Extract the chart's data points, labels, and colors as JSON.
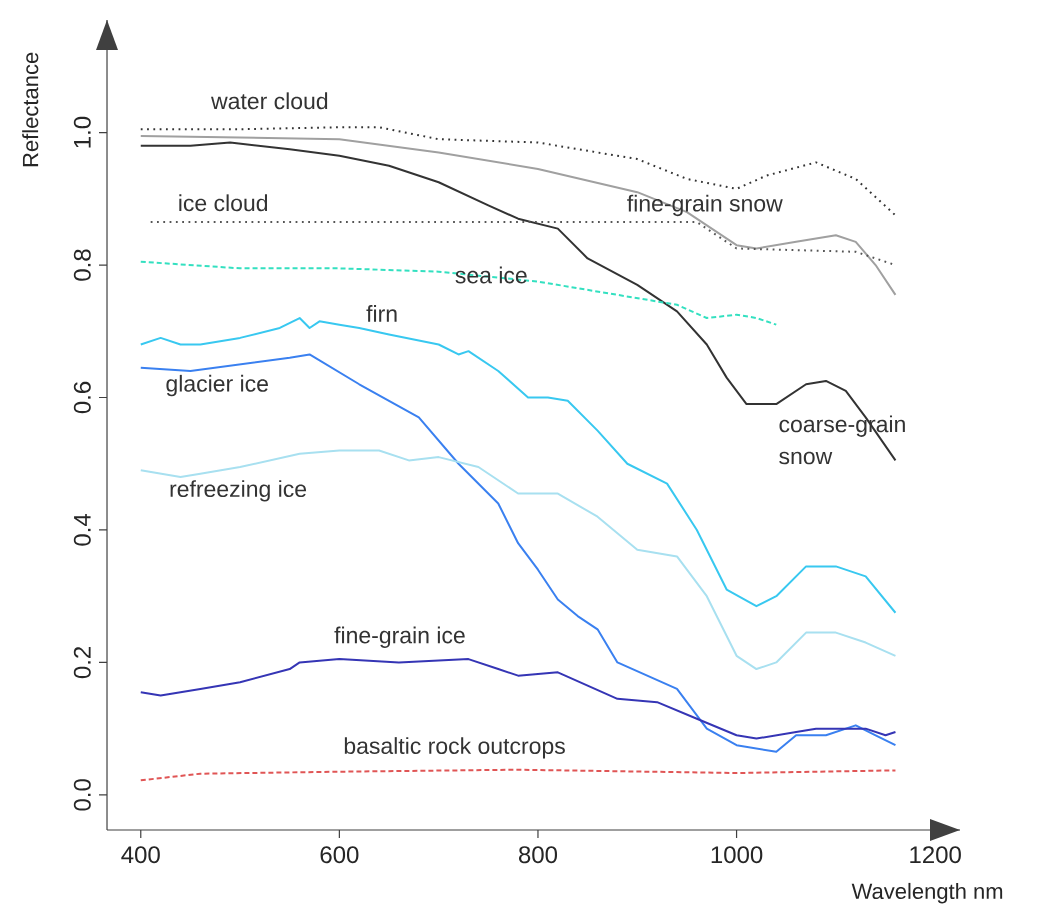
{
  "chart_data": {
    "type": "line",
    "xlabel": "Wavelength nm",
    "ylabel": "Reflectance",
    "xlim": [
      366,
      1225
    ],
    "ylim": [
      -0.053,
      1.17
    ],
    "xticks": [
      400,
      600,
      800,
      1000,
      1200
    ],
    "yticks": [
      {
        "value": 0,
        "label": "0.0"
      },
      {
        "value": 0.2,
        "label": "0.2"
      },
      {
        "value": 0.4,
        "label": "0.4"
      },
      {
        "value": 0.6,
        "label": "0.6"
      },
      {
        "value": 0.8,
        "label": "0.8"
      },
      {
        "value": 1.0,
        "label": "1.0"
      }
    ],
    "marker": "none",
    "series": [
      {
        "name": "water cloud",
        "color": "#333333",
        "line_style": "dotted",
        "x": [
          400,
          500,
          600,
          640,
          700,
          800,
          900,
          950,
          1000,
          1030,
          1080,
          1120,
          1160
        ],
        "values": [
          1.005,
          1.005,
          1.008,
          1.008,
          0.99,
          0.985,
          0.96,
          0.93,
          0.915,
          0.935,
          0.955,
          0.93,
          0.875
        ]
      },
      {
        "name": "fine-grain snow",
        "color": "#a0a0a0",
        "line_style": "solid",
        "x": [
          400,
          600,
          700,
          800,
          900,
          950,
          1000,
          1020,
          1060,
          1100,
          1120,
          1140,
          1160
        ],
        "values": [
          0.995,
          0.99,
          0.97,
          0.945,
          0.91,
          0.88,
          0.83,
          0.825,
          0.835,
          0.845,
          0.835,
          0.8,
          0.755
        ]
      },
      {
        "name": "coarse-grain snow",
        "color": "#333333",
        "line_style": "solid",
        "x": [
          400,
          450,
          490,
          550,
          600,
          650,
          700,
          750,
          780,
          820,
          850,
          900,
          940,
          970,
          990,
          1010,
          1040,
          1070,
          1090,
          1110,
          1130,
          1160
        ],
        "values": [
          0.98,
          0.98,
          0.985,
          0.975,
          0.965,
          0.95,
          0.925,
          0.89,
          0.87,
          0.855,
          0.81,
          0.77,
          0.73,
          0.68,
          0.63,
          0.59,
          0.59,
          0.62,
          0.625,
          0.61,
          0.57,
          0.505
        ]
      },
      {
        "name": "ice cloud",
        "color": "#555555",
        "line_style": "dotted",
        "x": [
          410,
          960,
          1000,
          1120,
          1160
        ],
        "values": [
          0.865,
          0.865,
          0.825,
          0.82,
          0.8
        ]
      },
      {
        "name": "sea ice",
        "color": "#33e0c0",
        "line_style": "dashed",
        "x": [
          400,
          500,
          600,
          700,
          800,
          880,
          940,
          970,
          1000,
          1020,
          1040
        ],
        "values": [
          0.805,
          0.795,
          0.795,
          0.79,
          0.775,
          0.755,
          0.74,
          0.72,
          0.725,
          0.72,
          0.71
        ]
      },
      {
        "name": "firn",
        "color": "#38c8f0",
        "line_style": "solid",
        "x": [
          400,
          420,
          440,
          460,
          500,
          540,
          560,
          570,
          580,
          600,
          620,
          650,
          700,
          720,
          730,
          760,
          790,
          810,
          830,
          860,
          890,
          930,
          960,
          990,
          1020,
          1040,
          1070,
          1100,
          1130,
          1160
        ],
        "values": [
          0.68,
          0.69,
          0.68,
          0.68,
          0.69,
          0.705,
          0.72,
          0.705,
          0.715,
          0.71,
          0.705,
          0.695,
          0.68,
          0.665,
          0.67,
          0.64,
          0.6,
          0.6,
          0.595,
          0.55,
          0.5,
          0.47,
          0.4,
          0.31,
          0.285,
          0.3,
          0.345,
          0.345,
          0.33,
          0.275
        ]
      },
      {
        "name": "glacier ice",
        "color": "#3a80f0",
        "line_style": "solid",
        "x": [
          400,
          450,
          500,
          550,
          570,
          620,
          680,
          720,
          760,
          780,
          800,
          820,
          840,
          860,
          880,
          940,
          970,
          1000,
          1040,
          1060,
          1090,
          1120,
          1140,
          1160
        ],
        "values": [
          0.645,
          0.64,
          0.65,
          0.66,
          0.665,
          0.62,
          0.57,
          0.5,
          0.44,
          0.38,
          0.34,
          0.295,
          0.27,
          0.25,
          0.2,
          0.16,
          0.1,
          0.075,
          0.065,
          0.09,
          0.09,
          0.105,
          0.09,
          0.075
        ]
      },
      {
        "name": "refreezing ice",
        "color": "#a8e0f0",
        "line_style": "solid",
        "x": [
          400,
          440,
          460,
          500,
          560,
          600,
          640,
          670,
          700,
          740,
          780,
          820,
          860,
          900,
          940,
          970,
          1000,
          1020,
          1040,
          1070,
          1100,
          1130,
          1160
        ],
        "values": [
          0.49,
          0.48,
          0.485,
          0.495,
          0.515,
          0.52,
          0.52,
          0.505,
          0.51,
          0.495,
          0.455,
          0.455,
          0.42,
          0.37,
          0.36,
          0.3,
          0.21,
          0.19,
          0.2,
          0.245,
          0.245,
          0.23,
          0.21
        ]
      },
      {
        "name": "fine-grain ice",
        "color": "#3535b5",
        "line_style": "solid",
        "x": [
          400,
          420,
          460,
          500,
          550,
          560,
          600,
          660,
          730,
          760,
          780,
          820,
          850,
          880,
          920,
          960,
          1000,
          1020,
          1060,
          1080,
          1130,
          1150,
          1160
        ],
        "values": [
          0.155,
          0.15,
          0.16,
          0.17,
          0.19,
          0.2,
          0.205,
          0.2,
          0.205,
          0.19,
          0.18,
          0.185,
          0.165,
          0.145,
          0.14,
          0.115,
          0.09,
          0.085,
          0.095,
          0.1,
          0.1,
          0.09,
          0.095
        ]
      },
      {
        "name": "basaltic rock outcrops",
        "color": "#e05555",
        "line_style": "dashed",
        "x": [
          400,
          460,
          600,
          780,
          1000,
          1160
        ],
        "values": [
          0.022,
          0.032,
          0.035,
          0.038,
          0.033,
          0.037
        ]
      }
    ]
  }
}
